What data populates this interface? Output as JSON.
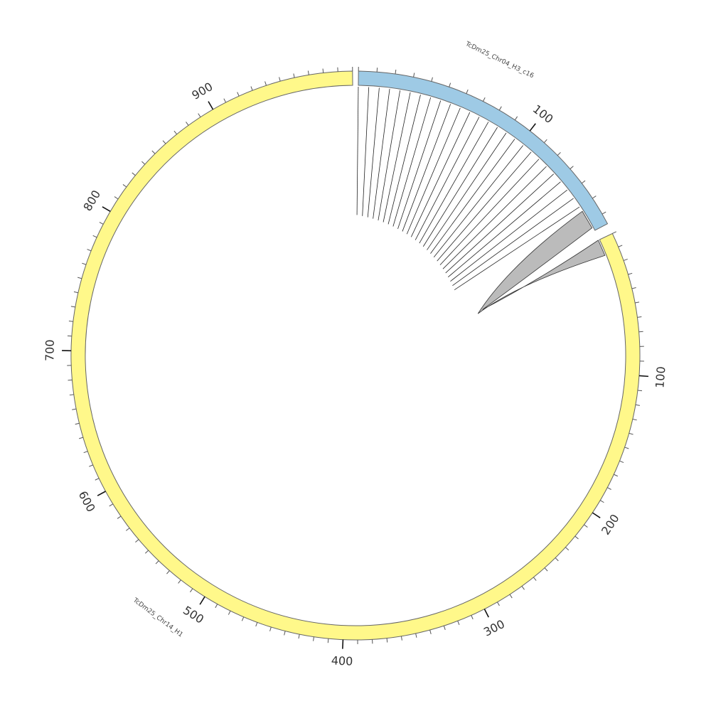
{
  "diagram": {
    "type": "circos",
    "colors": {
      "chr14": "#fff88a",
      "chr04": "#9ecae5",
      "stroke": "#666666",
      "link_stroke": "#222222",
      "ribbon_fill": "#bbbbbb"
    },
    "segments": [
      {
        "id": "chr04",
        "name": "TcDm25_Chr04_H3_c16",
        "length": 166,
        "color": "#9ecae5",
        "major_ticks": [
          100
        ],
        "major_labels": [
          "100"
        ]
      },
      {
        "id": "chr14",
        "name": "TcDm25_Chr14_H1",
        "length": 1000,
        "color": "#fff88a",
        "major_ticks": [
          100,
          200,
          300,
          400,
          500,
          600,
          700,
          800,
          900
        ],
        "major_labels": [
          "100",
          "200",
          "300",
          "400",
          "500",
          "600",
          "700",
          "800",
          "900"
        ]
      }
    ],
    "links": [
      {
        "from": {
          "seg": "chr04",
          "pos": 0
        },
        "to": {
          "seg": "chr04",
          "pos": 0
        }
      },
      {
        "from": {
          "seg": "chr04",
          "pos": 6
        },
        "to": {
          "seg": "chr04",
          "pos": 6
        }
      },
      {
        "from": {
          "seg": "chr04",
          "pos": 12
        },
        "to": {
          "seg": "chr04",
          "pos": 12
        }
      },
      {
        "from": {
          "seg": "chr04",
          "pos": 18
        },
        "to": {
          "seg": "chr04",
          "pos": 18
        }
      },
      {
        "from": {
          "seg": "chr04",
          "pos": 24
        },
        "to": {
          "seg": "chr04",
          "pos": 24
        }
      },
      {
        "from": {
          "seg": "chr04",
          "pos": 30
        },
        "to": {
          "seg": "chr04",
          "pos": 30
        }
      },
      {
        "from": {
          "seg": "chr04",
          "pos": 36
        },
        "to": {
          "seg": "chr04",
          "pos": 36
        }
      },
      {
        "from": {
          "seg": "chr04",
          "pos": 42
        },
        "to": {
          "seg": "chr04",
          "pos": 42
        }
      },
      {
        "from": {
          "seg": "chr04",
          "pos": 48
        },
        "to": {
          "seg": "chr04",
          "pos": 48
        }
      },
      {
        "from": {
          "seg": "chr04",
          "pos": 54
        },
        "to": {
          "seg": "chr04",
          "pos": 54
        }
      },
      {
        "from": {
          "seg": "chr04",
          "pos": 60
        },
        "to": {
          "seg": "chr04",
          "pos": 60
        }
      },
      {
        "from": {
          "seg": "chr04",
          "pos": 66
        },
        "to": {
          "seg": "chr04",
          "pos": 66
        }
      },
      {
        "from": {
          "seg": "chr04",
          "pos": 72
        },
        "to": {
          "seg": "chr04",
          "pos": 72
        }
      },
      {
        "from": {
          "seg": "chr04",
          "pos": 78
        },
        "to": {
          "seg": "chr04",
          "pos": 78
        }
      },
      {
        "from": {
          "seg": "chr04",
          "pos": 84
        },
        "to": {
          "seg": "chr04",
          "pos": 84
        }
      },
      {
        "from": {
          "seg": "chr04",
          "pos": 90
        },
        "to": {
          "seg": "chr04",
          "pos": 90
        }
      },
      {
        "from": {
          "seg": "chr04",
          "pos": 96
        },
        "to": {
          "seg": "chr04",
          "pos": 96
        }
      },
      {
        "from": {
          "seg": "chr04",
          "pos": 102
        },
        "to": {
          "seg": "chr04",
          "pos": 102
        }
      },
      {
        "from": {
          "seg": "chr04",
          "pos": 108
        },
        "to": {
          "seg": "chr04",
          "pos": 108
        }
      },
      {
        "from": {
          "seg": "chr04",
          "pos": 114
        },
        "to": {
          "seg": "chr04",
          "pos": 114
        }
      },
      {
        "from": {
          "seg": "chr04",
          "pos": 120
        },
        "to": {
          "seg": "chr04",
          "pos": 120
        }
      },
      {
        "from": {
          "seg": "chr04",
          "pos": 126
        },
        "to": {
          "seg": "chr04",
          "pos": 126
        }
      },
      {
        "from": {
          "seg": "chr04",
          "pos": 132
        },
        "to": {
          "seg": "chr04",
          "pos": 132
        }
      },
      {
        "from": {
          "seg": "chr04",
          "pos": 138
        },
        "to": {
          "seg": "chr04",
          "pos": 138
        }
      },
      {
        "from": {
          "seg": "chr04",
          "pos": 144
        },
        "to": {
          "seg": "chr04",
          "pos": 144
        }
      },
      {
        "from": {
          "seg": "chr04",
          "pos": 150
        },
        "to": {
          "seg": "chr04",
          "pos": 150
        }
      }
    ],
    "ribbons": [
      {
        "from": {
          "seg": "chr04",
          "start": 153,
          "end": 164
        },
        "to": {
          "seg": "chr14",
          "start": 0,
          "end": 12
        }
      }
    ]
  }
}
